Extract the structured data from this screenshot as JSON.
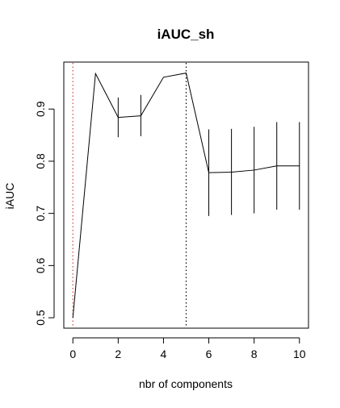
{
  "chart_data": {
    "type": "line",
    "title": "iAUC_sh",
    "xlabel": "nbr of components",
    "ylabel": "iAUC",
    "xlim": [
      -0.4,
      10.4
    ],
    "ylim": [
      0.48,
      0.99
    ],
    "x_ticks": [
      0,
      2,
      4,
      6,
      8,
      10
    ],
    "y_ticks": [
      0.5,
      0.6,
      0.7,
      0.8,
      0.9
    ],
    "grid": false,
    "series": [
      {
        "x": [
          0,
          1,
          2,
          3,
          4,
          5,
          6,
          7,
          8,
          9,
          10
        ],
        "y": [
          0.5,
          0.968,
          0.884,
          0.887,
          0.961,
          0.969,
          0.778,
          0.779,
          0.783,
          0.791,
          0.791
        ],
        "error_bars": [
          {
            "x": 2,
            "low": 0.846,
            "high": 0.922
          },
          {
            "x": 3,
            "low": 0.848,
            "high": 0.927
          },
          {
            "x": 6,
            "low": 0.695,
            "high": 0.861
          },
          {
            "x": 7,
            "low": 0.697,
            "high": 0.862
          },
          {
            "x": 8,
            "low": 0.7,
            "high": 0.866
          },
          {
            "x": 9,
            "low": 0.707,
            "high": 0.875
          },
          {
            "x": 10,
            "low": 0.707,
            "high": 0.875
          }
        ]
      }
    ],
    "reference_lines": [
      {
        "x": 0,
        "color": "#e03c3c",
        "style": "dotted"
      },
      {
        "x": 5,
        "color": "#000000",
        "style": "dotted"
      }
    ]
  }
}
